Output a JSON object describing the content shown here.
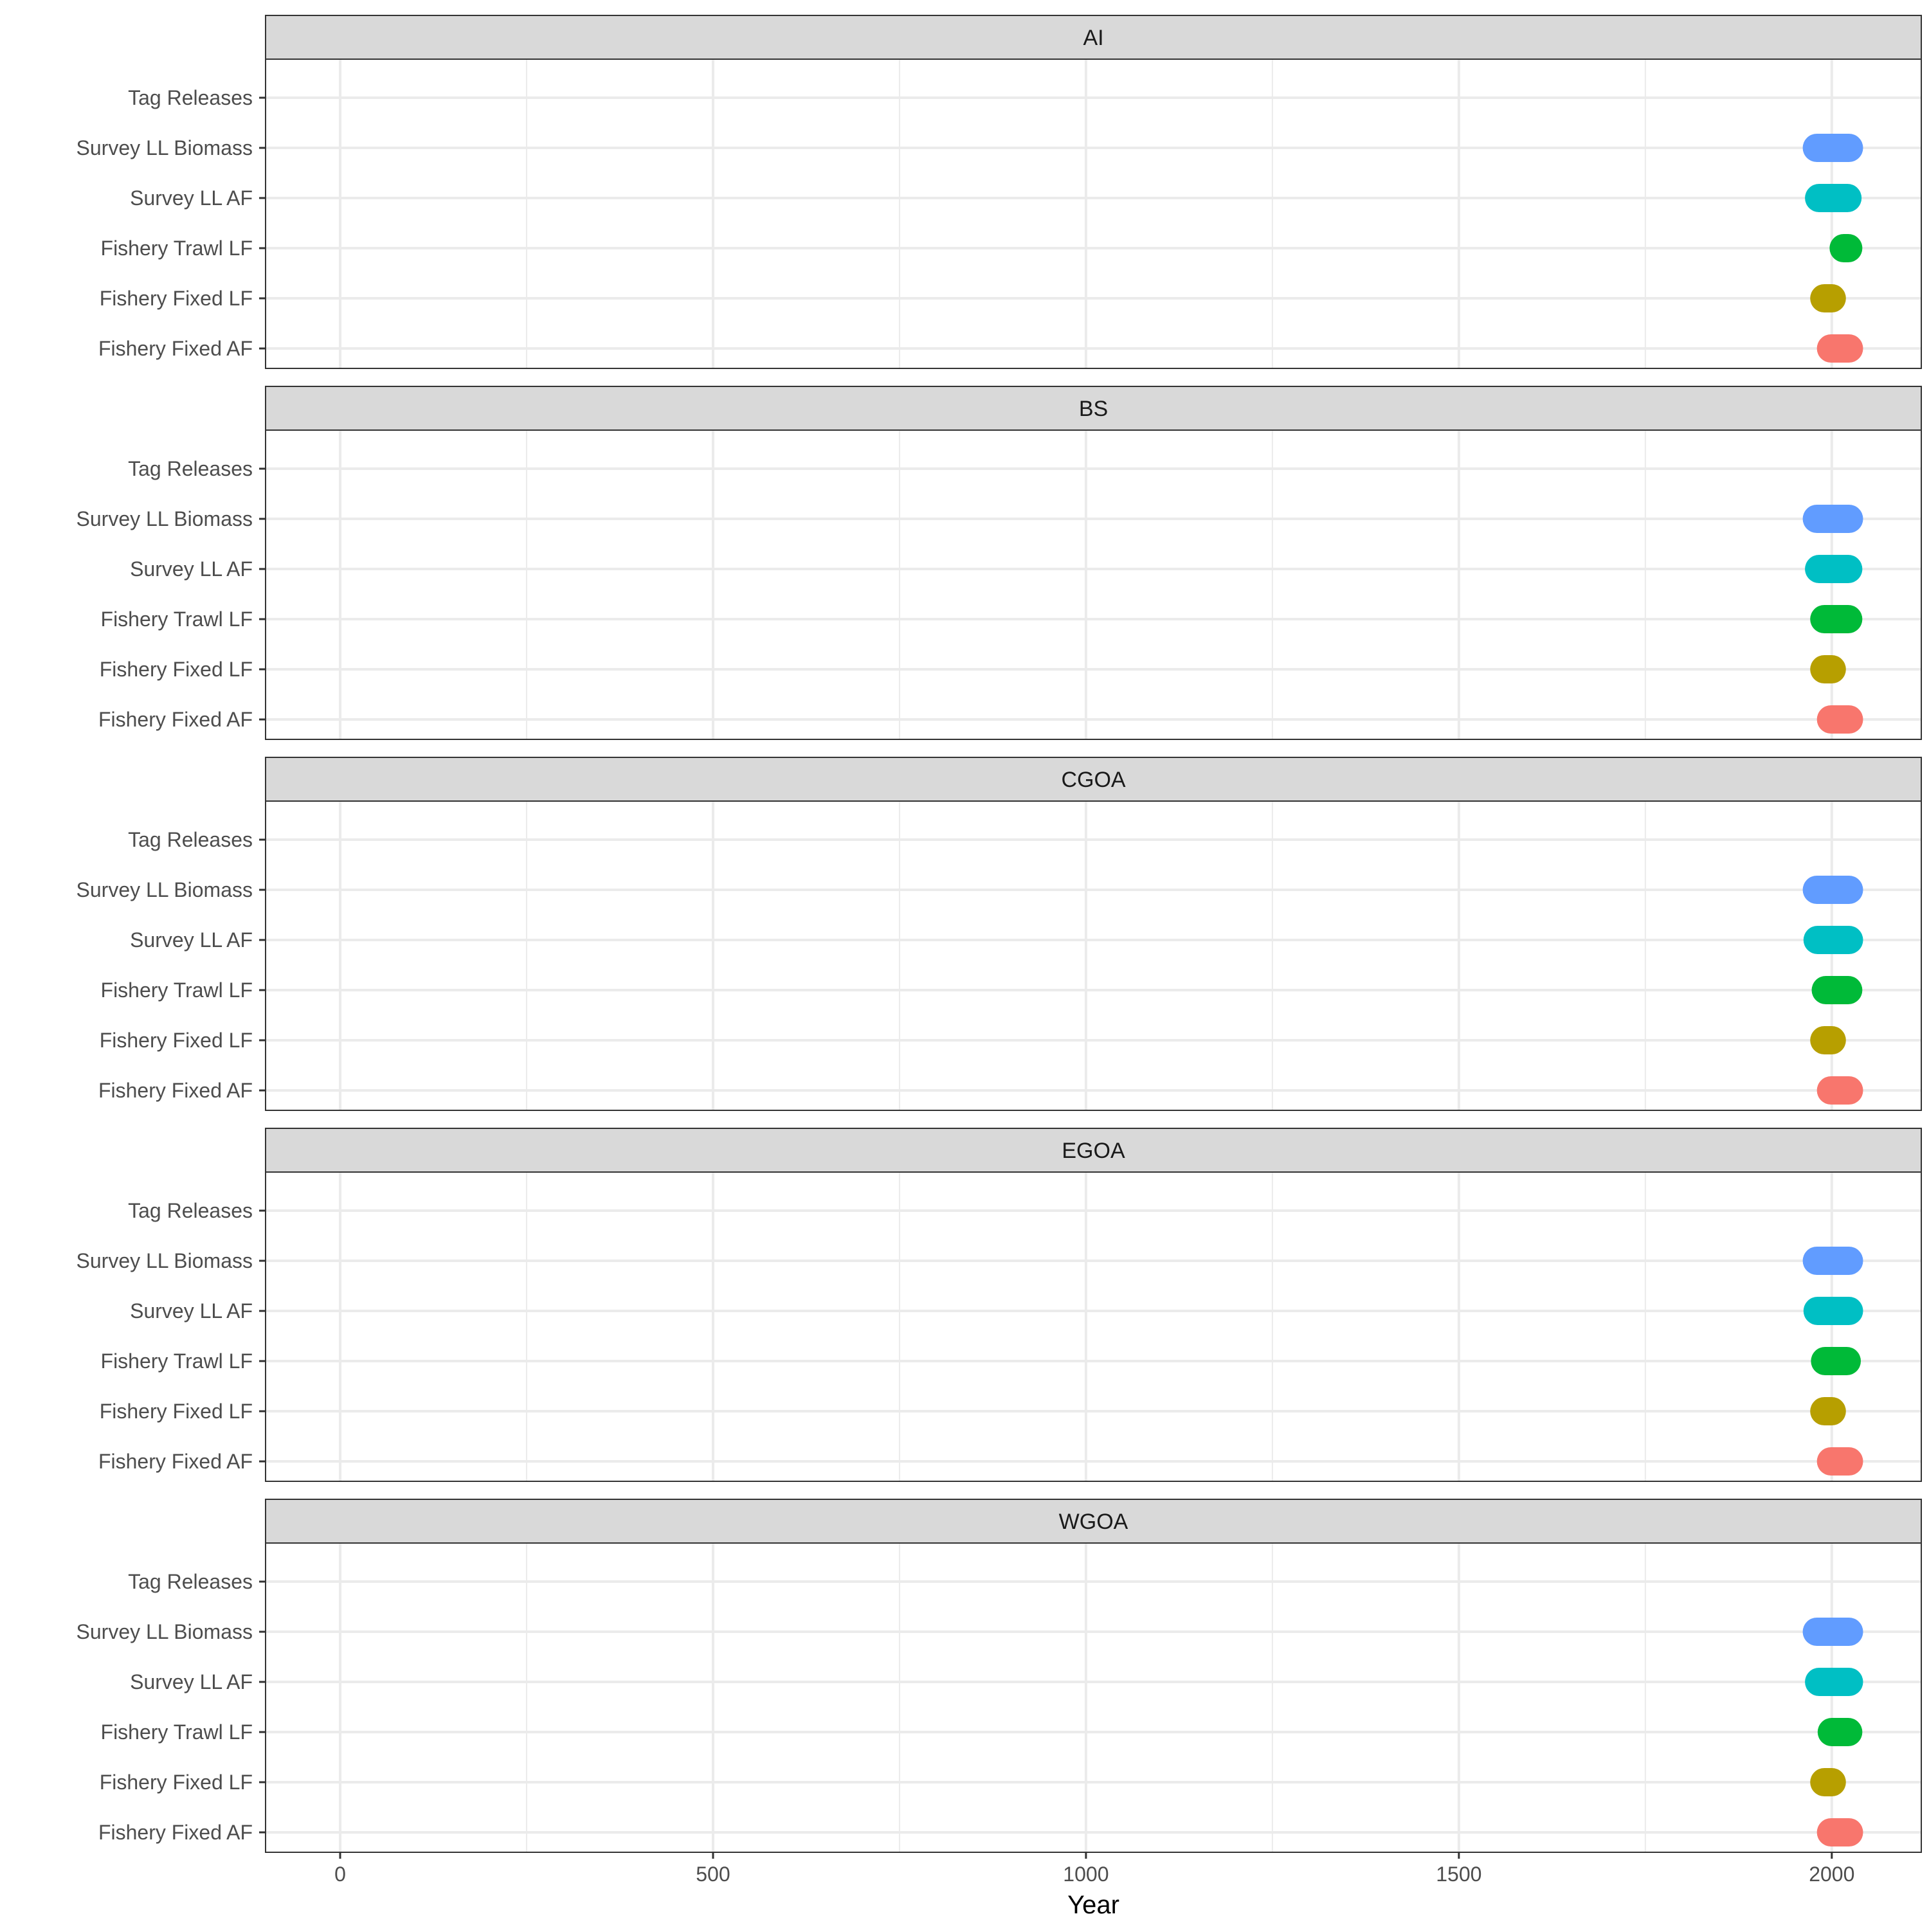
{
  "chart_data": {
    "type": "scatter",
    "xlabel": "Year",
    "ylabel": "",
    "xlim": [
      -100,
      2120
    ],
    "x_ticks": [
      0,
      500,
      1000,
      1500,
      2000
    ],
    "x_tick_labels": [
      "0",
      "500",
      "1000",
      "1500",
      "2000"
    ],
    "y_categories": [
      "Tag Releases",
      "Survey LL Biomass",
      "Survey LL AF",
      "Fishery Trawl LF",
      "Fishery Fixed LF",
      "Fishery Fixed AF"
    ],
    "grid": true,
    "legend": "none",
    "series_colors": {
      "Tag Releases": "#F564E3",
      "Survey LL Biomass": "#619CFF",
      "Survey LL AF": "#00BFC4",
      "Fishery Trawl LF": "#00BA38",
      "Fishery Fixed LF": "#B79F00",
      "Fishery Fixed AF": "#F8766D"
    },
    "panels": [
      {
        "title": "AI",
        "ranges": {
          "Tag Releases": null,
          "Survey LL Biomass": [
            1980,
            2023
          ],
          "Survey LL AF": [
            1983,
            2021
          ],
          "Fishery Trawl LF": [
            2016,
            2022
          ],
          "Fishery Fixed LF": [
            1990,
            2000
          ],
          "Fishery Fixed AF": [
            1999,
            2023
          ]
        }
      },
      {
        "title": "BS",
        "ranges": {
          "Tag Releases": null,
          "Survey LL Biomass": [
            1980,
            2023
          ],
          "Survey LL AF": [
            1983,
            2022
          ],
          "Fishery Trawl LF": [
            1990,
            2022
          ],
          "Fishery Fixed LF": [
            1990,
            2000
          ],
          "Fishery Fixed AF": [
            1999,
            2023
          ]
        }
      },
      {
        "title": "CGOA",
        "ranges": {
          "Tag Releases": null,
          "Survey LL Biomass": [
            1980,
            2023
          ],
          "Survey LL AF": [
            1981,
            2023
          ],
          "Fishery Trawl LF": [
            1992,
            2022
          ],
          "Fishery Fixed LF": [
            1990,
            2000
          ],
          "Fishery Fixed AF": [
            1999,
            2023
          ]
        }
      },
      {
        "title": "EGOA",
        "ranges": {
          "Tag Releases": null,
          "Survey LL Biomass": [
            1980,
            2023
          ],
          "Survey LL AF": [
            1981,
            2023
          ],
          "Fishery Trawl LF": [
            1991,
            2020
          ],
          "Fishery Fixed LF": [
            1990,
            2000
          ],
          "Fishery Fixed AF": [
            1999,
            2023
          ]
        }
      },
      {
        "title": "WGOA",
        "ranges": {
          "Tag Releases": null,
          "Survey LL Biomass": [
            1980,
            2023
          ],
          "Survey LL AF": [
            1983,
            2023
          ],
          "Fishery Trawl LF": [
            2000,
            2022
          ],
          "Fishery Fixed LF": [
            1990,
            2000
          ],
          "Fishery Fixed AF": [
            1999,
            2023
          ]
        }
      }
    ]
  }
}
